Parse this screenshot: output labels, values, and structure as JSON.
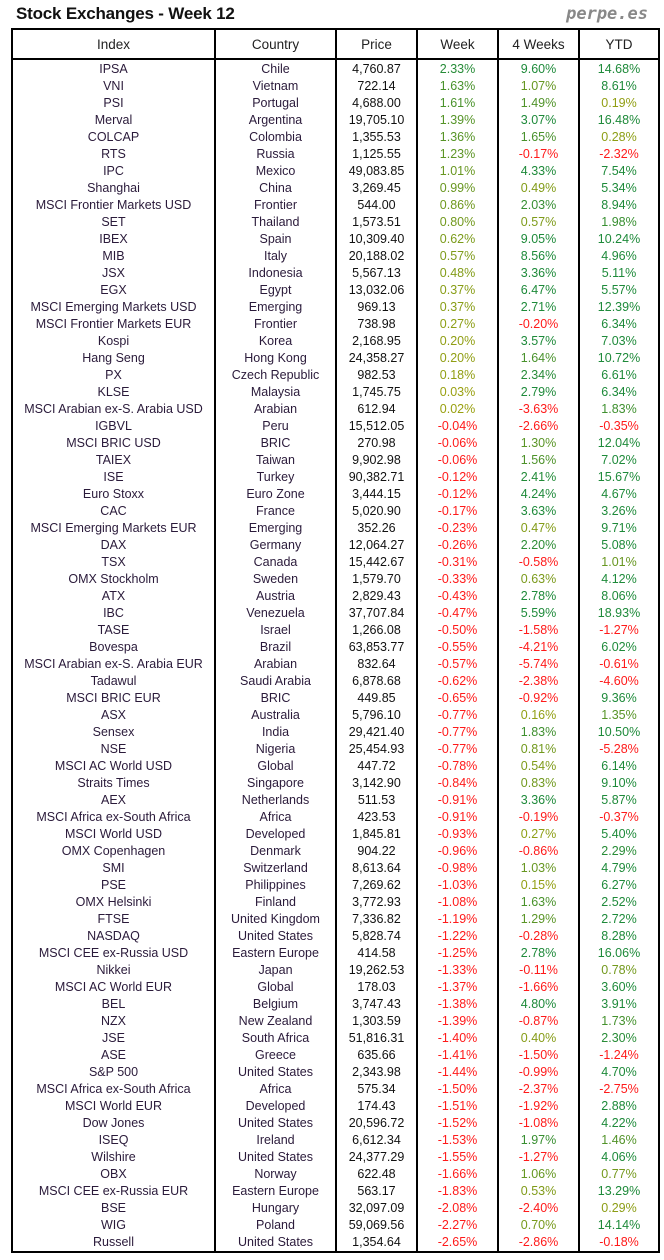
{
  "header": {
    "title": "Stock Exchanges - Week 12",
    "brand": "perpe.es"
  },
  "colors": {
    "positive": "#1e8a3a",
    "positive_small": "#9aa010",
    "negative": "#ff1a1a"
  },
  "table": {
    "columns": [
      "Index",
      "Country",
      "Price",
      "Week",
      "4 Weeks",
      "YTD"
    ],
    "rows": [
      [
        "IPSA",
        "Chile",
        "4,760.87",
        "2.33%",
        "9.60%",
        "14.68%"
      ],
      [
        "VNI",
        "Vietnam",
        "722.14",
        "1.63%",
        "1.07%",
        "8.61%"
      ],
      [
        "PSI",
        "Portugal",
        "4,688.00",
        "1.61%",
        "1.49%",
        "0.19%"
      ],
      [
        "Merval",
        "Argentina",
        "19,705.10",
        "1.39%",
        "3.07%",
        "16.48%"
      ],
      [
        "COLCAP",
        "Colombia",
        "1,355.53",
        "1.36%",
        "1.65%",
        "0.28%"
      ],
      [
        "RTS",
        "Russia",
        "1,125.55",
        "1.23%",
        "-0.17%",
        "-2.32%"
      ],
      [
        "IPC",
        "Mexico",
        "49,083.85",
        "1.01%",
        "4.33%",
        "7.54%"
      ],
      [
        "Shanghai",
        "China",
        "3,269.45",
        "0.99%",
        "0.49%",
        "5.34%"
      ],
      [
        "MSCI Frontier Markets USD",
        "Frontier",
        "544.00",
        "0.86%",
        "2.03%",
        "8.94%"
      ],
      [
        "SET",
        "Thailand",
        "1,573.51",
        "0.80%",
        "0.57%",
        "1.98%"
      ],
      [
        "IBEX",
        "Spain",
        "10,309.40",
        "0.62%",
        "9.05%",
        "10.24%"
      ],
      [
        "MIB",
        "Italy",
        "20,188.02",
        "0.57%",
        "8.56%",
        "4.96%"
      ],
      [
        "JSX",
        "Indonesia",
        "5,567.13",
        "0.48%",
        "3.36%",
        "5.11%"
      ],
      [
        "EGX",
        "Egypt",
        "13,032.06",
        "0.37%",
        "6.47%",
        "5.57%"
      ],
      [
        "MSCI Emerging Markets USD",
        "Emerging",
        "969.13",
        "0.37%",
        "2.71%",
        "12.39%"
      ],
      [
        "MSCI Frontier Markets EUR",
        "Frontier",
        "738.98",
        "0.27%",
        "-0.20%",
        "6.34%"
      ],
      [
        "Kospi",
        "Korea",
        "2,168.95",
        "0.20%",
        "3.57%",
        "7.03%"
      ],
      [
        "Hang Seng",
        "Hong Kong",
        "24,358.27",
        "0.20%",
        "1.64%",
        "10.72%"
      ],
      [
        "PX",
        "Czech Republic",
        "982.53",
        "0.18%",
        "2.34%",
        "6.61%"
      ],
      [
        "KLSE",
        "Malaysia",
        "1,745.75",
        "0.03%",
        "2.79%",
        "6.34%"
      ],
      [
        "MSCI Arabian ex-S. Arabia USD",
        "Arabian",
        "612.94",
        "0.02%",
        "-3.63%",
        "1.83%"
      ],
      [
        "IGBVL",
        "Peru",
        "15,512.05",
        "-0.04%",
        "-2.66%",
        "-0.35%"
      ],
      [
        "MSCI BRIC USD",
        "BRIC",
        "270.98",
        "-0.06%",
        "1.30%",
        "12.04%"
      ],
      [
        "TAIEX",
        "Taiwan",
        "9,902.98",
        "-0.06%",
        "1.56%",
        "7.02%"
      ],
      [
        "ISE",
        "Turkey",
        "90,382.71",
        "-0.12%",
        "2.41%",
        "15.67%"
      ],
      [
        "Euro Stoxx",
        "Euro Zone",
        "3,444.15",
        "-0.12%",
        "4.24%",
        "4.67%"
      ],
      [
        "CAC",
        "France",
        "5,020.90",
        "-0.17%",
        "3.63%",
        "3.26%"
      ],
      [
        "MSCI Emerging Markets EUR",
        "Emerging",
        "352.26",
        "-0.23%",
        "0.47%",
        "9.71%"
      ],
      [
        "DAX",
        "Germany",
        "12,064.27",
        "-0.26%",
        "2.20%",
        "5.08%"
      ],
      [
        "TSX",
        "Canada",
        "15,442.67",
        "-0.31%",
        "-0.58%",
        "1.01%"
      ],
      [
        "OMX Stockholm",
        "Sweden",
        "1,579.70",
        "-0.33%",
        "0.63%",
        "4.12%"
      ],
      [
        "ATX",
        "Austria",
        "2,829.43",
        "-0.43%",
        "2.78%",
        "8.06%"
      ],
      [
        "IBC",
        "Venezuela",
        "37,707.84",
        "-0.47%",
        "5.59%",
        "18.93%"
      ],
      [
        "TASE",
        "Israel",
        "1,266.08",
        "-0.50%",
        "-1.58%",
        "-1.27%"
      ],
      [
        "Bovespa",
        "Brazil",
        "63,853.77",
        "-0.55%",
        "-4.21%",
        "6.02%"
      ],
      [
        "MSCI Arabian ex-S. Arabia EUR",
        "Arabian",
        "832.64",
        "-0.57%",
        "-5.74%",
        "-0.61%"
      ],
      [
        "Tadawul",
        "Saudi Arabia",
        "6,878.68",
        "-0.62%",
        "-2.38%",
        "-4.60%"
      ],
      [
        "MSCI BRIC EUR",
        "BRIC",
        "449.85",
        "-0.65%",
        "-0.92%",
        "9.36%"
      ],
      [
        "ASX",
        "Australia",
        "5,796.10",
        "-0.77%",
        "0.16%",
        "1.35%"
      ],
      [
        "Sensex",
        "India",
        "29,421.40",
        "-0.77%",
        "1.83%",
        "10.50%"
      ],
      [
        "NSE",
        "Nigeria",
        "25,454.93",
        "-0.77%",
        "0.81%",
        "-5.28%"
      ],
      [
        "MSCI AC World USD",
        "Global",
        "447.72",
        "-0.78%",
        "0.54%",
        "6.14%"
      ],
      [
        "Straits Times",
        "Singapore",
        "3,142.90",
        "-0.84%",
        "0.83%",
        "9.10%"
      ],
      [
        "AEX",
        "Netherlands",
        "511.53",
        "-0.91%",
        "3.36%",
        "5.87%"
      ],
      [
        "MSCI Africa ex-South Africa",
        "Africa",
        "423.53",
        "-0.91%",
        "-0.19%",
        "-0.37%"
      ],
      [
        "MSCI World USD",
        "Developed",
        "1,845.81",
        "-0.93%",
        "0.27%",
        "5.40%"
      ],
      [
        "OMX Copenhagen",
        "Denmark",
        "904.22",
        "-0.96%",
        "-0.86%",
        "2.29%"
      ],
      [
        "SMI",
        "Switzerland",
        "8,613.64",
        "-0.98%",
        "1.03%",
        "4.79%"
      ],
      [
        "PSE",
        "Philippines",
        "7,269.62",
        "-1.03%",
        "0.15%",
        "6.27%"
      ],
      [
        "OMX Helsinki",
        "Finland",
        "3,772.93",
        "-1.08%",
        "1.63%",
        "2.52%"
      ],
      [
        "FTSE",
        "United Kingdom",
        "7,336.82",
        "-1.19%",
        "1.29%",
        "2.72%"
      ],
      [
        "NASDAQ",
        "United States",
        "5,828.74",
        "-1.22%",
        "-0.28%",
        "8.28%"
      ],
      [
        "MSCI CEE ex-Russia USD",
        "Eastern Europe",
        "414.58",
        "-1.25%",
        "2.78%",
        "16.06%"
      ],
      [
        "Nikkei",
        "Japan",
        "19,262.53",
        "-1.33%",
        "-0.11%",
        "0.78%"
      ],
      [
        "MSCI AC World EUR",
        "Global",
        "178.03",
        "-1.37%",
        "-1.66%",
        "3.60%"
      ],
      [
        "BEL",
        "Belgium",
        "3,747.43",
        "-1.38%",
        "4.80%",
        "3.91%"
      ],
      [
        "NZX",
        "New Zealand",
        "1,303.59",
        "-1.39%",
        "-0.87%",
        "1.73%"
      ],
      [
        "JSE",
        "South Africa",
        "51,816.31",
        "-1.40%",
        "0.40%",
        "2.30%"
      ],
      [
        "ASE",
        "Greece",
        "635.66",
        "-1.41%",
        "-1.50%",
        "-1.24%"
      ],
      [
        "S&P 500",
        "United States",
        "2,343.98",
        "-1.44%",
        "-0.99%",
        "4.70%"
      ],
      [
        "MSCI Africa ex-South Africa",
        "Africa",
        "575.34",
        "-1.50%",
        "-2.37%",
        "-2.75%"
      ],
      [
        "MSCI World EUR",
        "Developed",
        "174.43",
        "-1.51%",
        "-1.92%",
        "2.88%"
      ],
      [
        "Dow Jones",
        "United States",
        "20,596.72",
        "-1.52%",
        "-1.08%",
        "4.22%"
      ],
      [
        "ISEQ",
        "Ireland",
        "6,612.34",
        "-1.53%",
        "1.97%",
        "1.46%"
      ],
      [
        "Wilshire",
        "United States",
        "24,377.29",
        "-1.55%",
        "-1.27%",
        "4.06%"
      ],
      [
        "OBX",
        "Norway",
        "622.48",
        "-1.66%",
        "1.06%",
        "0.77%"
      ],
      [
        "MSCI CEE ex-Russia EUR",
        "Eastern Europe",
        "563.17",
        "-1.83%",
        "0.53%",
        "13.29%"
      ],
      [
        "BSE",
        "Hungary",
        "32,097.09",
        "-2.08%",
        "-2.40%",
        "0.29%"
      ],
      [
        "WIG",
        "Poland",
        "59,069.56",
        "-2.27%",
        "0.70%",
        "14.14%"
      ],
      [
        "Russell",
        "United States",
        "1,354.64",
        "-2.65%",
        "-2.86%",
        "-0.18%"
      ]
    ]
  }
}
